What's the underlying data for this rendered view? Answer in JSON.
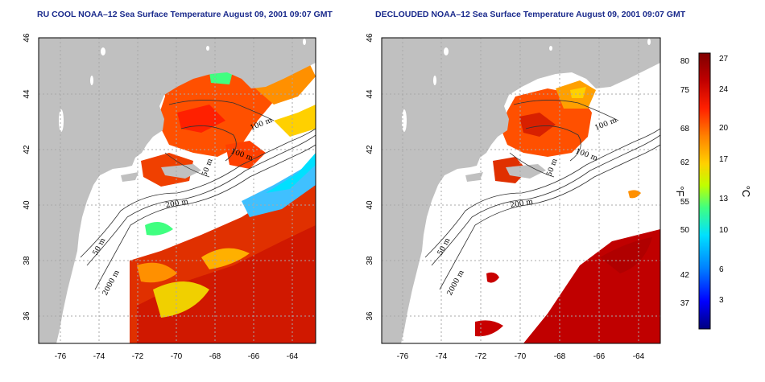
{
  "panels": [
    {
      "id": "left",
      "title": "RU COOL NOAA–12 Sea Surface Temperature August 09, 2001 09:07 GMT",
      "contour_labels": [
        "100 m",
        "100 m",
        "50 m",
        "200 m",
        "50 m",
        "2000 m"
      ]
    },
    {
      "id": "right",
      "title": "DECLOUDED NOAA–12 Sea Surface Temperature August 09, 2001 09:07 GMT",
      "contour_labels": [
        "100 m",
        "100 m",
        "50 m",
        "200 m",
        "50 m",
        "2000 m"
      ]
    }
  ],
  "axes": {
    "x_ticks": [
      "-76",
      "-74",
      "-72",
      "-70",
      "-68",
      "-66",
      "-64"
    ],
    "y_ticks": [
      "46",
      "44",
      "42",
      "40",
      "38",
      "36"
    ]
  },
  "colorbar": {
    "fahrenheit_ticks": [
      "80",
      "75",
      "68",
      "62",
      "55",
      "50",
      "42",
      "37"
    ],
    "celsius_ticks": [
      "27",
      "24",
      "20",
      "17",
      "13",
      "10",
      "6",
      "3"
    ],
    "fahrenheit_unit": "°F",
    "celsius_unit": "°C",
    "colors": [
      "#00007f",
      "#0000ff",
      "#0080ff",
      "#00e0ff",
      "#40ff80",
      "#c0ff00",
      "#ffd000",
      "#ff8000",
      "#ff2000",
      "#c00000",
      "#7f0000"
    ]
  },
  "colors": {
    "land": "#c0c0c0",
    "grid": "#a8a8a8",
    "title": "#1a2a8c"
  }
}
